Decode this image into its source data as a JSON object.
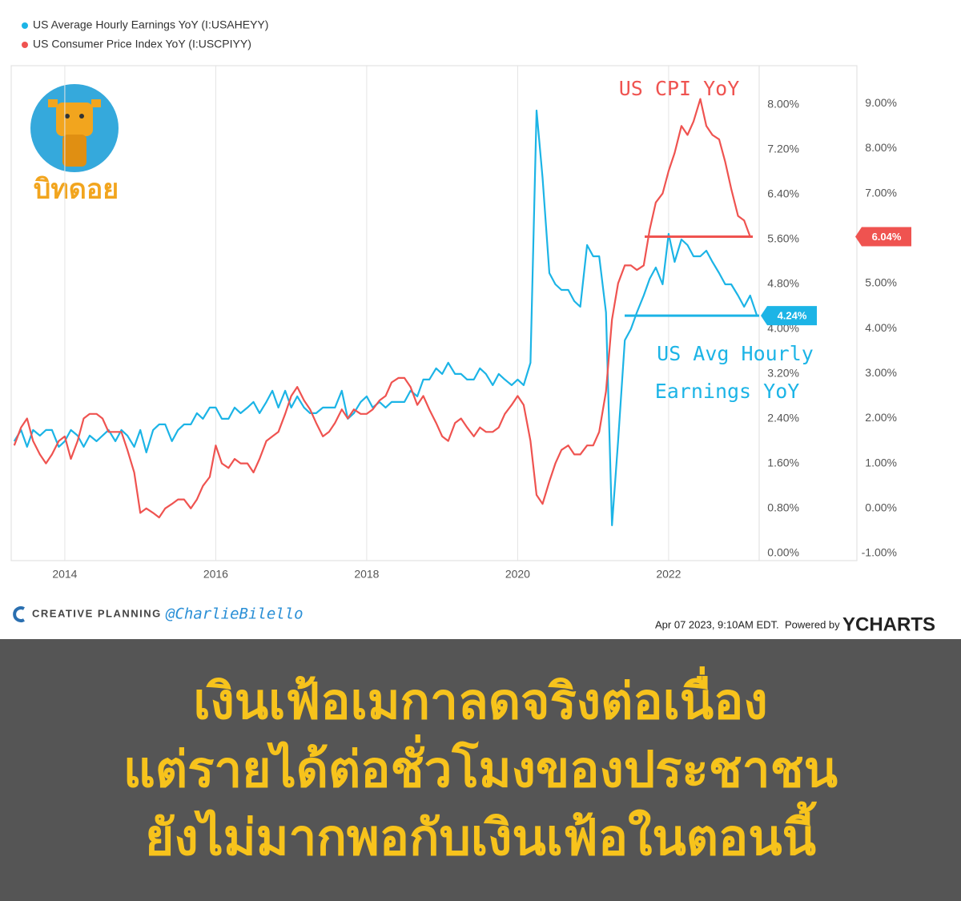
{
  "chart_data": {
    "type": "line",
    "legend_position": "top-left",
    "series": [
      {
        "name": "US Average Hourly Earnings YoY (I:USAHEYY)",
        "color": "#1cb4e6",
        "axis": "y",
        "end_label": "4.24%",
        "x": [
          2013.33,
          2013.42,
          2013.5,
          2013.58,
          2013.67,
          2013.75,
          2013.83,
          2013.92,
          2014,
          2014.08,
          2014.17,
          2014.25,
          2014.33,
          2014.42,
          2014.5,
          2014.58,
          2014.67,
          2014.75,
          2014.83,
          2014.92,
          2015,
          2015.08,
          2015.17,
          2015.25,
          2015.33,
          2015.42,
          2015.5,
          2015.58,
          2015.67,
          2015.75,
          2015.83,
          2015.92,
          2016,
          2016.08,
          2016.17,
          2016.25,
          2016.33,
          2016.42,
          2016.5,
          2016.58,
          2016.67,
          2016.75,
          2016.83,
          2016.92,
          2017,
          2017.08,
          2017.17,
          2017.25,
          2017.33,
          2017.42,
          2017.5,
          2017.58,
          2017.67,
          2017.75,
          2017.83,
          2017.92,
          2018,
          2018.08,
          2018.17,
          2018.25,
          2018.33,
          2018.42,
          2018.5,
          2018.58,
          2018.67,
          2018.75,
          2018.83,
          2018.92,
          2019,
          2019.08,
          2019.17,
          2019.25,
          2019.33,
          2019.42,
          2019.5,
          2019.58,
          2019.67,
          2019.75,
          2019.83,
          2019.92,
          2020,
          2020.08,
          2020.17,
          2020.25,
          2020.33,
          2020.42,
          2020.5,
          2020.58,
          2020.67,
          2020.75,
          2020.83,
          2020.92,
          2021,
          2021.08,
          2021.17,
          2021.25,
          2021.33,
          2021.42,
          2021.5,
          2021.58,
          2021.67,
          2021.75,
          2021.83,
          2021.92,
          2022,
          2022.08,
          2022.17,
          2022.25,
          2022.33,
          2022.42,
          2022.5,
          2022.58,
          2022.67,
          2022.75,
          2022.83,
          2022.92,
          2023,
          2023.08,
          2023.17
        ],
        "values": [
          2.0,
          2.2,
          1.9,
          2.2,
          2.1,
          2.2,
          2.2,
          1.9,
          2.0,
          2.2,
          2.1,
          1.9,
          2.1,
          2.0,
          2.1,
          2.2,
          2.0,
          2.2,
          2.1,
          1.9,
          2.2,
          1.8,
          2.2,
          2.3,
          2.3,
          2.0,
          2.2,
          2.3,
          2.3,
          2.5,
          2.4,
          2.6,
          2.6,
          2.4,
          2.4,
          2.6,
          2.5,
          2.6,
          2.7,
          2.5,
          2.7,
          2.9,
          2.6,
          2.9,
          2.6,
          2.8,
          2.6,
          2.5,
          2.5,
          2.6,
          2.6,
          2.6,
          2.9,
          2.4,
          2.5,
          2.7,
          2.8,
          2.6,
          2.7,
          2.6,
          2.7,
          2.7,
          2.7,
          2.9,
          2.8,
          3.1,
          3.1,
          3.3,
          3.2,
          3.4,
          3.2,
          3.2,
          3.1,
          3.1,
          3.3,
          3.2,
          3.0,
          3.2,
          3.1,
          3.0,
          3.1,
          3.0,
          3.4,
          7.9,
          6.7,
          5.0,
          4.8,
          4.7,
          4.7,
          4.5,
          4.4,
          5.5,
          5.3,
          5.3,
          4.3,
          0.5,
          2.0,
          3.8,
          4.0,
          4.3,
          4.6,
          4.9,
          5.1,
          4.8,
          5.7,
          5.2,
          5.6,
          5.5,
          5.3,
          5.3,
          5.4,
          5.2,
          5.0,
          4.8,
          4.8,
          4.6,
          4.4,
          4.6,
          4.24
        ]
      },
      {
        "name": "US Consumer Price Index YoY (I:USCPIYY)",
        "color": "#ef5350",
        "axis": "y2",
        "end_label": "6.04%",
        "x": [
          2013.33,
          2013.42,
          2013.5,
          2013.58,
          2013.67,
          2013.75,
          2013.83,
          2013.92,
          2014,
          2014.08,
          2014.17,
          2014.25,
          2014.33,
          2014.42,
          2014.5,
          2014.58,
          2014.67,
          2014.75,
          2014.83,
          2014.92,
          2015,
          2015.08,
          2015.17,
          2015.25,
          2015.33,
          2015.42,
          2015.5,
          2015.58,
          2015.67,
          2015.75,
          2015.83,
          2015.92,
          2016,
          2016.08,
          2016.17,
          2016.25,
          2016.33,
          2016.42,
          2016.5,
          2016.58,
          2016.67,
          2016.75,
          2016.83,
          2016.92,
          2017,
          2017.08,
          2017.17,
          2017.25,
          2017.33,
          2017.42,
          2017.5,
          2017.58,
          2017.67,
          2017.75,
          2017.83,
          2017.92,
          2018,
          2018.08,
          2018.17,
          2018.25,
          2018.33,
          2018.42,
          2018.5,
          2018.58,
          2018.67,
          2018.75,
          2018.83,
          2018.92,
          2019,
          2019.08,
          2019.17,
          2019.25,
          2019.33,
          2019.42,
          2019.5,
          2019.58,
          2019.67,
          2019.75,
          2019.83,
          2019.92,
          2020,
          2020.08,
          2020.17,
          2020.25,
          2020.33,
          2020.42,
          2020.5,
          2020.58,
          2020.67,
          2020.75,
          2020.83,
          2020.92,
          2021,
          2021.08,
          2021.17,
          2021.25,
          2021.33,
          2021.42,
          2021.5,
          2021.58,
          2021.67,
          2021.75,
          2021.83,
          2021.92,
          2022,
          2022.08,
          2022.17,
          2022.25,
          2022.33,
          2022.42,
          2022.5,
          2022.58,
          2022.67,
          2022.75,
          2022.83,
          2022.92,
          2023,
          2023.08
        ],
        "values": [
          1.4,
          1.8,
          2.0,
          1.5,
          1.2,
          1.0,
          1.2,
          1.5,
          1.6,
          1.1,
          1.5,
          2.0,
          2.1,
          2.1,
          2.0,
          1.7,
          1.7,
          1.7,
          1.3,
          0.8,
          -0.1,
          0.0,
          -0.1,
          -0.2,
          0.0,
          0.1,
          0.2,
          0.2,
          0.0,
          0.2,
          0.5,
          0.7,
          1.4,
          1.0,
          0.9,
          1.1,
          1.0,
          1.0,
          0.8,
          1.1,
          1.5,
          1.6,
          1.7,
          2.1,
          2.5,
          2.7,
          2.4,
          2.2,
          1.9,
          1.6,
          1.7,
          1.9,
          2.2,
          2.0,
          2.2,
          2.1,
          2.1,
          2.2,
          2.4,
          2.5,
          2.8,
          2.9,
          2.9,
          2.7,
          2.3,
          2.5,
          2.2,
          1.9,
          1.6,
          1.5,
          1.9,
          2.0,
          1.8,
          1.6,
          1.8,
          1.7,
          1.7,
          1.8,
          2.1,
          2.3,
          2.5,
          2.3,
          1.5,
          0.3,
          0.1,
          0.6,
          1.0,
          1.3,
          1.4,
          1.2,
          1.2,
          1.4,
          1.4,
          1.7,
          2.6,
          4.2,
          5.0,
          5.4,
          5.4,
          5.3,
          5.4,
          6.2,
          6.8,
          7.0,
          7.5,
          7.9,
          8.5,
          8.3,
          8.6,
          9.1,
          8.5,
          8.3,
          8.2,
          7.7,
          7.1,
          6.5,
          6.4,
          6.04
        ]
      }
    ],
    "xlim": [
      2013.29,
      2023.2
    ],
    "xticks": [
      2014,
      2016,
      2018,
      2020,
      2022
    ],
    "ylim": [
      -0.13,
      8.7
    ],
    "yticks": [
      {
        "value": 0,
        "label": "0.00%"
      },
      {
        "value": 0.8,
        "label": "0.80%"
      },
      {
        "value": 1.6,
        "label": "1.60%"
      },
      {
        "value": 2.4,
        "label": "2.40%"
      },
      {
        "value": 3.2,
        "label": "3.20%"
      },
      {
        "value": 4.0,
        "label": "4.00%"
      },
      {
        "value": 4.8,
        "label": "4.80%"
      },
      {
        "value": 5.6,
        "label": "5.60%"
      },
      {
        "value": 6.4,
        "label": "6.40%"
      },
      {
        "value": 7.2,
        "label": "7.20%"
      },
      {
        "value": 8.0,
        "label": "8.00%"
      }
    ],
    "y2lim": [
      -1.16,
      9.84
    ],
    "y2ticks": [
      {
        "value": -1,
        "label": "-1.00%"
      },
      {
        "value": 0,
        "label": "0.00%"
      },
      {
        "value": 1,
        "label": "1.00%"
      },
      {
        "value": 2,
        "label": "2.00%"
      },
      {
        "value": 3,
        "label": "3.00%"
      },
      {
        "value": 4,
        "label": "4.00%"
      },
      {
        "value": 5,
        "label": "5.00%"
      },
      {
        "value": 6,
        "label": "6.00%"
      },
      {
        "value": 7,
        "label": "7.00%"
      },
      {
        "value": 8,
        "label": "8.00%"
      },
      {
        "value": 9,
        "label": "9.00%"
      }
    ],
    "grid": "vertical",
    "annotations": [
      "US CPI YoY",
      "US Avg Hourly",
      "Earnings YoY"
    ]
  },
  "logo": {
    "text": "บิทดอย"
  },
  "footer": {
    "brand": "CREATIVE PLANNING",
    "handle": "@CharlieBilello",
    "timestamp": "Apr 07 2023, 9:10AM EDT.",
    "powered": "Powered by",
    "provider": "YCHARTS"
  },
  "caption": {
    "lines": [
      "เงินเฟ้อเมกาลดจริงต่อเนื่อง",
      "แต่รายได้ต่อชั่วโมงของประชาชน",
      "ยังไม่มากพอกับเงินเฟ้อในตอนนี้"
    ]
  }
}
